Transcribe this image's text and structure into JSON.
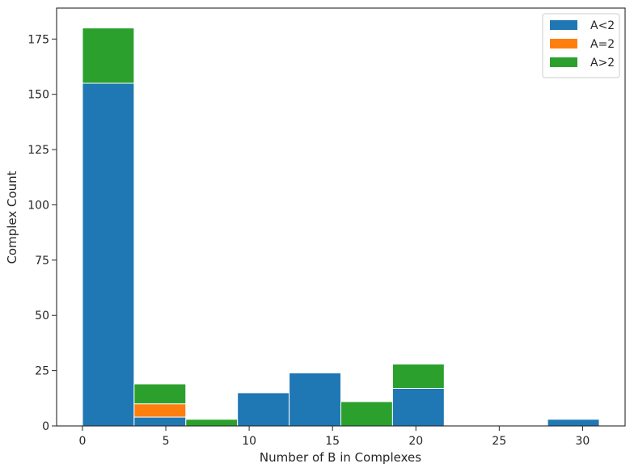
{
  "chart_data": {
    "type": "bar",
    "stacked": true,
    "title": "",
    "xlabel": "Number of B in Complexes",
    "ylabel": "Complex Count",
    "xlim": [
      -1.55,
      32.55
    ],
    "ylim": [
      0,
      189
    ],
    "x_ticks": [
      0,
      5,
      10,
      15,
      20,
      25,
      30
    ],
    "y_ticks": [
      0,
      25,
      50,
      75,
      100,
      125,
      150,
      175
    ],
    "bin_edges": [
      0,
      3.1,
      6.2,
      9.3,
      12.4,
      15.5,
      18.6,
      21.7,
      24.8,
      27.9,
      31
    ],
    "series": [
      {
        "name": "A<2",
        "color": "#1f77b4",
        "values": [
          155,
          4,
          0,
          15,
          24,
          0,
          17,
          0,
          0,
          3
        ]
      },
      {
        "name": "A=2",
        "color": "#ff7f0e",
        "values": [
          0,
          6,
          0,
          0,
          0,
          0,
          0,
          0,
          0,
          0
        ]
      },
      {
        "name": "A>2",
        "color": "#2ca02c",
        "values": [
          25,
          9,
          3,
          0,
          0,
          11,
          11,
          0,
          0,
          0
        ]
      }
    ],
    "grid": false,
    "legend_position": "top-right"
  }
}
